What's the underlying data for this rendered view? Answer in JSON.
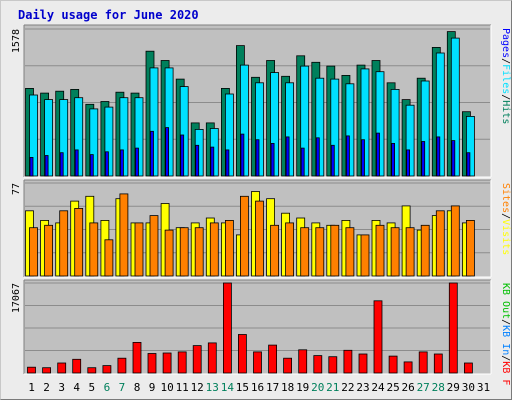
{
  "title": "Daily usage for June 2020",
  "colors": {
    "hits": "#00805c",
    "files": "#00e0ff",
    "pages": "#0000ff",
    "visits": "#ffff00",
    "sites": "#ff8000",
    "kbin": "#0080ff",
    "kbout": "#00c000",
    "kbf": "#ff0000",
    "panel_bg": "#c0c0c0",
    "label_day": "#000000",
    "label_weekend": "#00805c"
  },
  "chart_data": [
    {
      "type": "bar",
      "panel": "top",
      "ymax_label": "1578",
      "ymax": 1578,
      "legend": [
        {
          "text": "Hits",
          "color_key": "hits"
        },
        {
          "text": "Files",
          "color_key": "files"
        },
        {
          "text": "Pages",
          "color_key": "pages"
        }
      ],
      "categories": [
        "1",
        "2",
        "3",
        "4",
        "5",
        "6",
        "7",
        "8",
        "9",
        "10",
        "11",
        "12",
        "13",
        "14",
        "15",
        "16",
        "17",
        "18",
        "19",
        "20",
        "21",
        "22",
        "23",
        "24",
        "25",
        "26",
        "27",
        "28",
        "29",
        "30",
        "31"
      ],
      "series": [
        {
          "name": "Hits",
          "values": [
            940,
            890,
            910,
            930,
            770,
            800,
            900,
            890,
            1340,
            1240,
            1040,
            570,
            570,
            940,
            1400,
            1060,
            1240,
            1070,
            1290,
            1220,
            1180,
            1080,
            1190,
            1240,
            1000,
            820,
            1050,
            1380,
            1550,
            690,
            0
          ]
        },
        {
          "name": "Files",
          "values": [
            870,
            820,
            820,
            840,
            720,
            740,
            840,
            840,
            1160,
            1160,
            960,
            500,
            510,
            880,
            1190,
            1000,
            1110,
            1000,
            1180,
            1050,
            1040,
            990,
            1150,
            1120,
            930,
            760,
            1020,
            1320,
            1480,
            640,
            0
          ]
        },
        {
          "name": "Pages",
          "values": [
            200,
            220,
            250,
            280,
            230,
            260,
            280,
            300,
            480,
            520,
            440,
            330,
            310,
            280,
            450,
            390,
            350,
            420,
            300,
            410,
            330,
            430,
            390,
            460,
            350,
            280,
            370,
            420,
            380,
            250,
            0
          ]
        }
      ]
    },
    {
      "type": "bar",
      "panel": "middle",
      "ymax_label": "77",
      "ymax": 77,
      "legend": [
        {
          "text": "Visits",
          "color_key": "visits"
        },
        {
          "text": "Sites",
          "color_key": "sites"
        }
      ],
      "categories": [
        "1",
        "2",
        "3",
        "4",
        "5",
        "6",
        "7",
        "8",
        "9",
        "10",
        "11",
        "12",
        "13",
        "14",
        "15",
        "16",
        "17",
        "18",
        "19",
        "20",
        "21",
        "22",
        "23",
        "24",
        "25",
        "26",
        "27",
        "28",
        "29",
        "30",
        "31"
      ],
      "series": [
        {
          "name": "Visits",
          "values": [
            54,
            46,
            44,
            62,
            66,
            46,
            64,
            44,
            44,
            60,
            40,
            44,
            48,
            44,
            34,
            70,
            64,
            52,
            48,
            44,
            42,
            46,
            34,
            46,
            44,
            58,
            38,
            50,
            54,
            44,
            0
          ]
        },
        {
          "name": "Sites",
          "values": [
            40,
            42,
            54,
            56,
            44,
            30,
            68,
            44,
            50,
            38,
            40,
            40,
            44,
            46,
            66,
            62,
            42,
            44,
            40,
            40,
            42,
            40,
            34,
            42,
            40,
            40,
            42,
            54,
            58,
            46,
            0
          ]
        }
      ]
    },
    {
      "type": "bar",
      "panel": "bottom",
      "ymax_label": "17067",
      "ymax": 17067,
      "legend": [
        {
          "text": "KB F",
          "color_key": "kbf"
        },
        {
          "text": "KB In",
          "color_key": "kbin"
        },
        {
          "text": "KB Out",
          "color_key": "kbout"
        }
      ],
      "categories": [
        "1",
        "2",
        "3",
        "4",
        "5",
        "6",
        "7",
        "8",
        "9",
        "10",
        "11",
        "12",
        "13",
        "14",
        "15",
        "16",
        "17",
        "18",
        "19",
        "20",
        "21",
        "22",
        "23",
        "24",
        "25",
        "26",
        "27",
        "28",
        "29",
        "30",
        "31"
      ],
      "series": [
        {
          "name": "KB F",
          "values": [
            1100,
            1000,
            1900,
            2600,
            1000,
            1400,
            2800,
            5800,
            3700,
            3800,
            4000,
            5200,
            5700,
            17067,
            7300,
            4000,
            5300,
            2800,
            4400,
            3300,
            3100,
            4300,
            3600,
            13700,
            3200,
            2100,
            4000,
            3600,
            17067,
            1900,
            0
          ]
        }
      ]
    }
  ],
  "day_labels": [
    "1",
    "2",
    "3",
    "4",
    "5",
    "6",
    "7",
    "8",
    "9",
    "10",
    "11",
    "12",
    "13",
    "14",
    "15",
    "16",
    "17",
    "18",
    "19",
    "20",
    "21",
    "22",
    "23",
    "24",
    "25",
    "26",
    "27",
    "28",
    "29",
    "30",
    "31"
  ],
  "weekend_days": [
    "6",
    "7",
    "13",
    "14",
    "20",
    "21",
    "27",
    "28"
  ]
}
